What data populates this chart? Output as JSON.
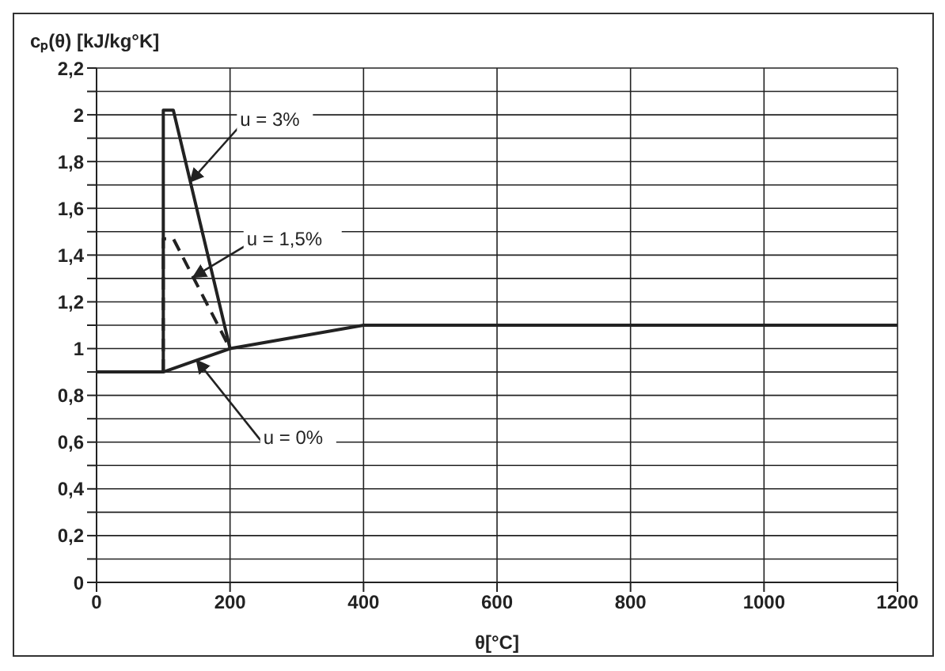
{
  "chart_data": {
    "type": "line",
    "xlabel": "θ[°C]",
    "ylabel": "cₚ(θ) [kJ/kg°K]",
    "series": [
      {
        "name": "u = 3%",
        "color": "#222222",
        "line_style": "solid",
        "x": [
          100,
          100,
          115,
          200
        ],
        "values": [
          0.9,
          2.02,
          2.02,
          1.0
        ]
      },
      {
        "name": "u = 1,5%",
        "color": "#222222",
        "line_style": "dashed",
        "x": [
          100,
          100,
          115,
          200
        ],
        "values": [
          0.9,
          1.47,
          1.47,
          1.0
        ]
      },
      {
        "name": "u = 0%",
        "color": "#222222",
        "line_style": "solid",
        "x": [
          0,
          100,
          200,
          400,
          1200
        ],
        "values": [
          0.9,
          0.9,
          1.0,
          1.1,
          1.1
        ]
      }
    ],
    "xlim": [
      0,
      1200
    ],
    "xticks": [
      0,
      200,
      400,
      600,
      800,
      1000,
      1200
    ],
    "ylim": [
      0,
      2.2
    ],
    "yticks": [
      {
        "value": 0,
        "label": "0"
      },
      {
        "value": 0.1,
        "label": null
      },
      {
        "value": 0.2,
        "label": "0,2"
      },
      {
        "value": 0.3,
        "label": null
      },
      {
        "value": 0.4,
        "label": "0,4"
      },
      {
        "value": 0.5,
        "label": null
      },
      {
        "value": 0.6,
        "label": "0,6"
      },
      {
        "value": 0.7,
        "label": null
      },
      {
        "value": 0.8,
        "label": "0,8"
      },
      {
        "value": 0.9,
        "label": null
      },
      {
        "value": 1,
        "label": "1"
      },
      {
        "value": 1.1,
        "label": null
      },
      {
        "value": 1.2,
        "label": "1,2"
      },
      {
        "value": 1.3,
        "label": null
      },
      {
        "value": 1.4,
        "label": "1,4"
      },
      {
        "value": 1.5,
        "label": null
      },
      {
        "value": 1.6,
        "label": "1,6"
      },
      {
        "value": 1.7,
        "label": null
      },
      {
        "value": 1.8,
        "label": "1,8"
      },
      {
        "value": 1.9,
        "label": null
      },
      {
        "value": 2,
        "label": "2"
      },
      {
        "value": 2.1,
        "label": null
      },
      {
        "value": 2.2,
        "label": "2,2"
      }
    ],
    "grid": true,
    "marker": "none",
    "legend": false
  }
}
